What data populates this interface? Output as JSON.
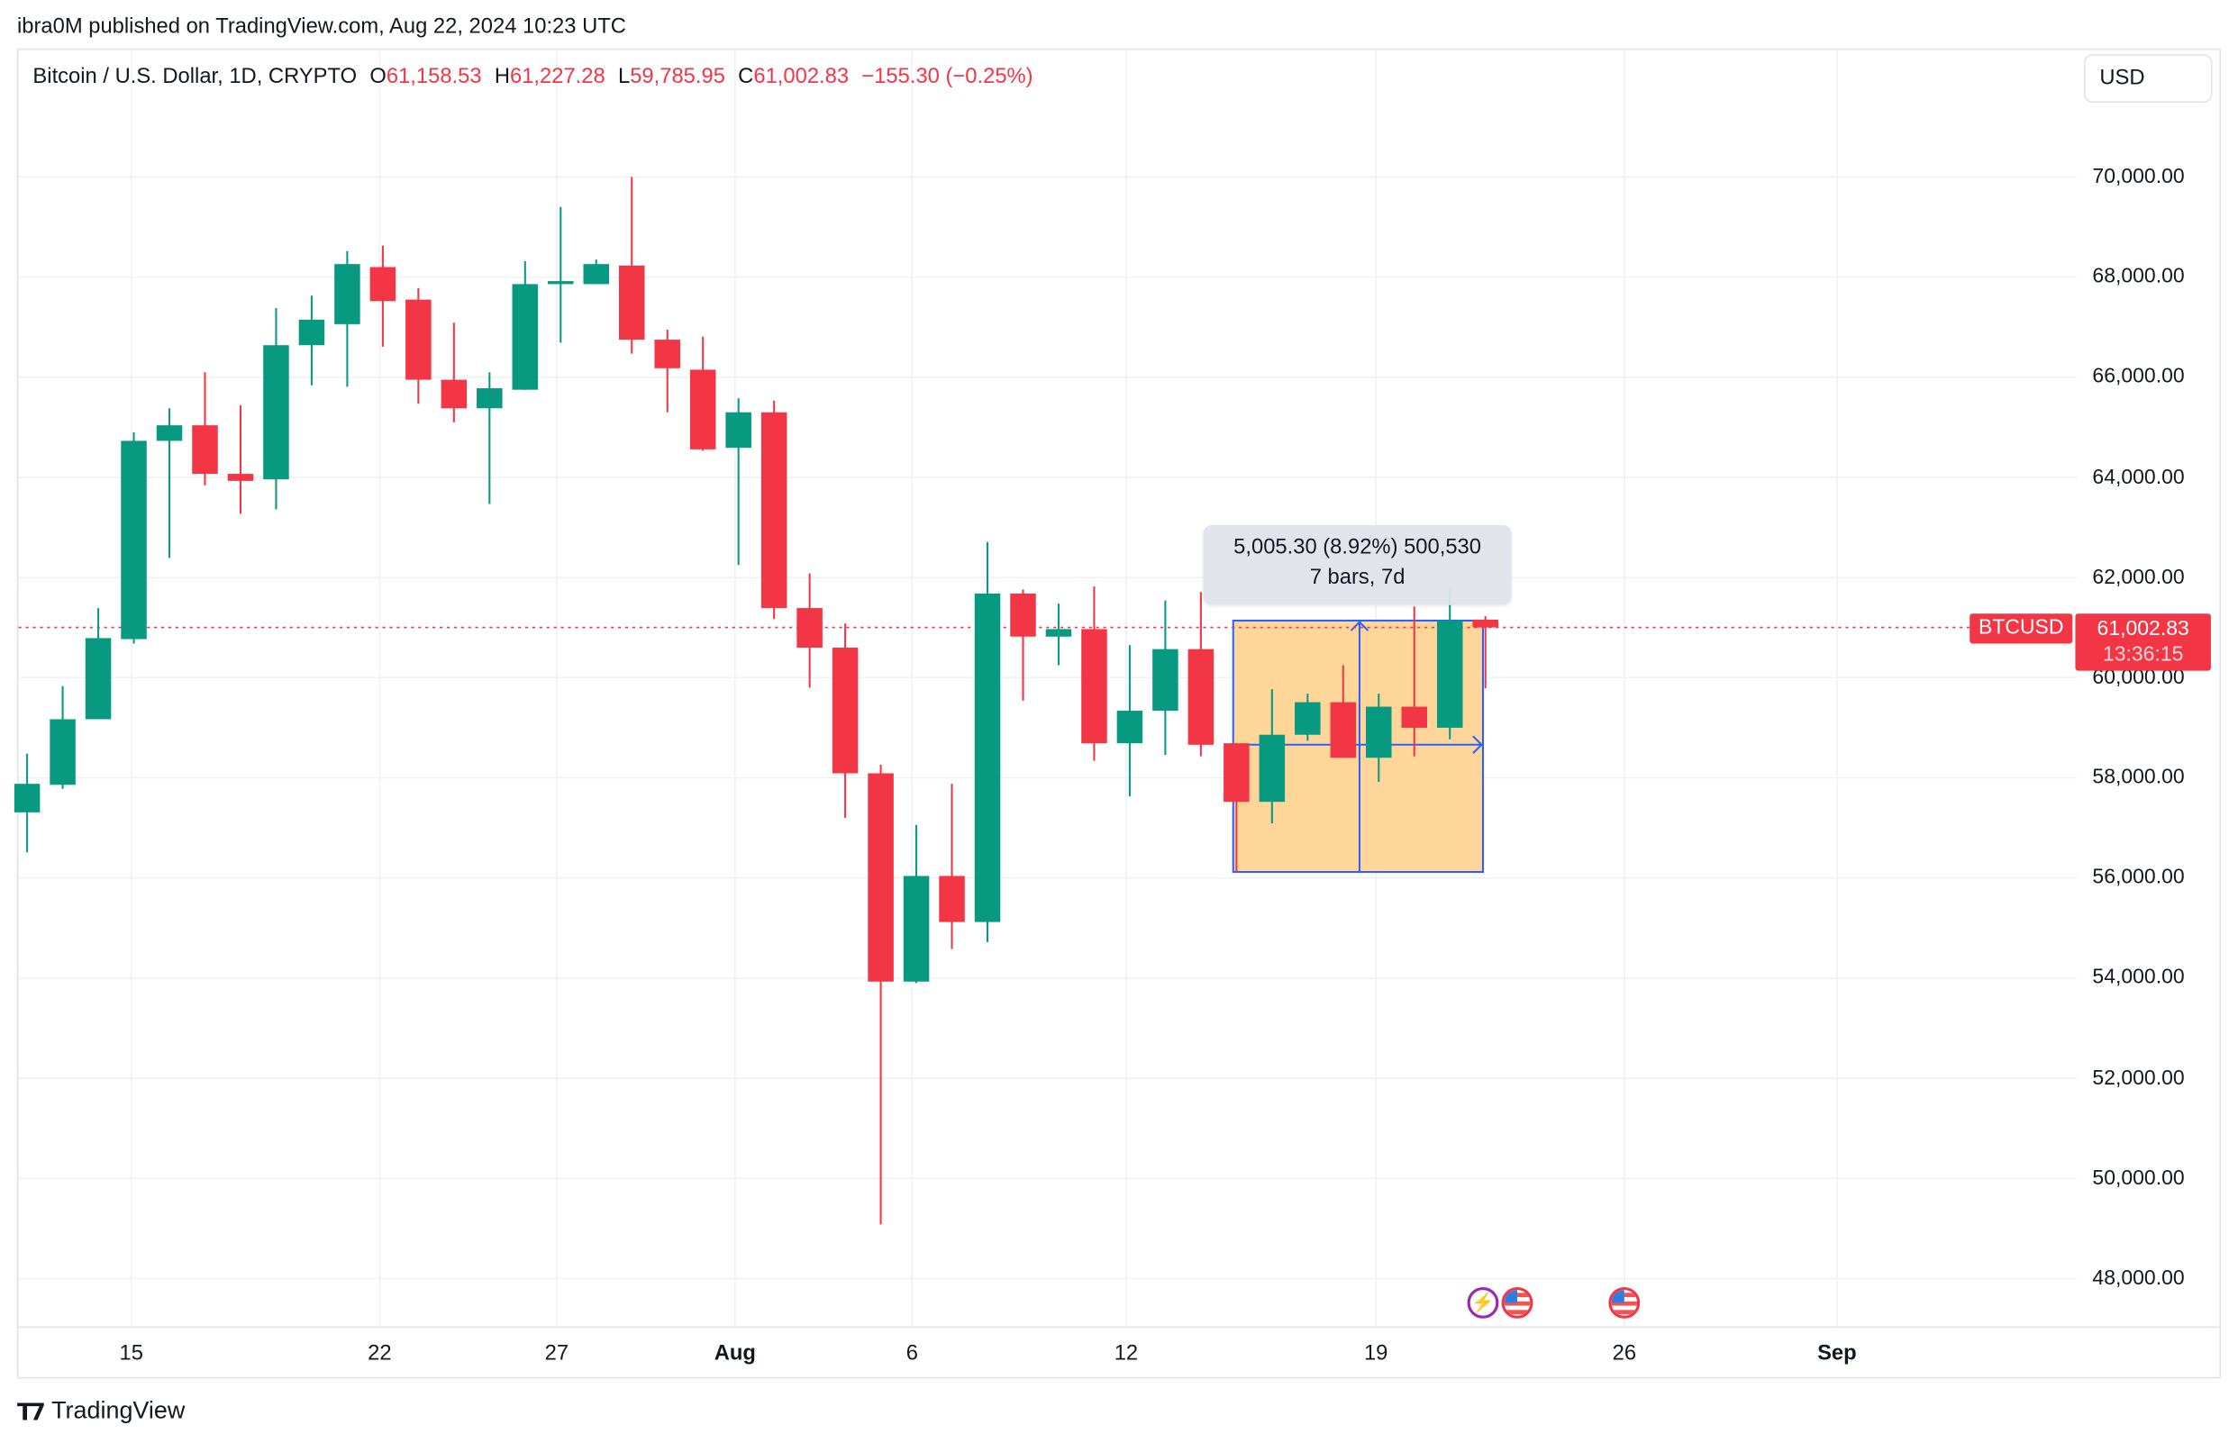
{
  "publisher": "ibra0M published on TradingView.com, Aug 22, 2024 10:23 UTC",
  "legend": {
    "symbol": "Bitcoin / U.S. Dollar, 1D, CRYPTO",
    "o_label": "O",
    "o": "61,158.53",
    "h_label": "H",
    "h": "61,227.28",
    "l_label": "L",
    "l": "59,785.95",
    "c_label": "C",
    "c": "61,002.83",
    "change": "−155.30 (−0.25%)"
  },
  "currency_button": "USD",
  "price_axis": [
    "70,000.00",
    "68,000.00",
    "66,000.00",
    "64,000.00",
    "62,000.00",
    "60,000.00",
    "58,000.00",
    "56,000.00",
    "54,000.00",
    "52,000.00",
    "50,000.00",
    "48,000.00"
  ],
  "time_axis": [
    {
      "label": "15",
      "bold": false
    },
    {
      "label": "22",
      "bold": false
    },
    {
      "label": "27",
      "bold": false
    },
    {
      "label": "Aug",
      "bold": true
    },
    {
      "label": "6",
      "bold": false
    },
    {
      "label": "12",
      "bold": false
    },
    {
      "label": "19",
      "bold": false
    },
    {
      "label": "26",
      "bold": false
    },
    {
      "label": "Sep",
      "bold": true
    }
  ],
  "last_price": {
    "symbol_tag": "BTCUSD",
    "price": "61,002.83",
    "countdown": "13:36:15"
  },
  "measure_tool": {
    "line1": "5,005.30 (8.92%) 500,530",
    "line2": "7 bars, 7d"
  },
  "events": [
    {
      "type": "bolt-icon"
    },
    {
      "type": "us-flag-icon"
    },
    {
      "type": "us-flag-icon"
    }
  ],
  "branding": "TradingView",
  "colors": {
    "up": "#089981",
    "down": "#f23645",
    "grid": "#f0f1f4",
    "measure_fill": "#ffd699",
    "measure_line": "#2962ff",
    "event_bolt": "#9c27b0"
  },
  "chart_data": {
    "type": "candlestick",
    "title": "Bitcoin / U.S. Dollar, 1D, CRYPTO",
    "xlabel": "",
    "ylabel": "USD",
    "ylim": [
      47000,
      71500
    ],
    "grid": true,
    "x": [
      "Jul 12",
      "Jul 13",
      "Jul 14",
      "Jul 15",
      "Jul 16",
      "Jul 17",
      "Jul 18",
      "Jul 19",
      "Jul 20",
      "Jul 21",
      "Jul 22",
      "Jul 23",
      "Jul 24",
      "Jul 25",
      "Jul 26",
      "Jul 27",
      "Jul 28",
      "Jul 29",
      "Jul 30",
      "Jul 31",
      "Aug 1",
      "Aug 2",
      "Aug 3",
      "Aug 4",
      "Aug 5",
      "Aug 6",
      "Aug 7",
      "Aug 8",
      "Aug 9",
      "Aug 10",
      "Aug 11",
      "Aug 12",
      "Aug 13",
      "Aug 14",
      "Aug 15",
      "Aug 16",
      "Aug 17",
      "Aug 18",
      "Aug 19",
      "Aug 20",
      "Aug 21",
      "Aug 22"
    ],
    "open": [
      57310,
      57860,
      59170,
      60770,
      64730,
      65040,
      64070,
      63960,
      66640,
      67060,
      68200,
      67550,
      65950,
      65380,
      65750,
      67860,
      67860,
      68230,
      66750,
      66150,
      64590,
      65300,
      61390,
      60600,
      58090,
      53930,
      56040,
      55120,
      61680,
      60820,
      60970,
      58690,
      59340,
      60570,
      58690,
      57520,
      58860,
      59510,
      58400,
      59420,
      59000,
      61158.53
    ],
    "high": [
      58480,
      59830,
      61390,
      64900,
      65380,
      66100,
      65440,
      67380,
      67630,
      68520,
      68630,
      67780,
      67090,
      66100,
      68320,
      69400,
      68350,
      70000,
      66950,
      66810,
      65580,
      65530,
      62080,
      61080,
      58260,
      57060,
      57880,
      62710,
      61760,
      61480,
      61820,
      60650,
      61540,
      61710,
      58690,
      59770,
      59680,
      60250,
      59680,
      61420,
      61820,
      61227.28
    ],
    "low": [
      56510,
      57780,
      59170,
      60680,
      62390,
      63840,
      63270,
      63360,
      65840,
      65810,
      66610,
      65470,
      65100,
      63470,
      65750,
      66690,
      67860,
      66470,
      65300,
      64530,
      62250,
      61170,
      59800,
      57200,
      49080,
      53900,
      54580,
      54720,
      59540,
      60250,
      58340,
      57630,
      58460,
      58430,
      56120,
      57090,
      58740,
      58400,
      57920,
      58430,
      58770,
      59785.95
    ],
    "close": [
      57880,
      59170,
      60790,
      64730,
      65040,
      64070,
      63930,
      66640,
      67150,
      68260,
      67520,
      65950,
      65380,
      65780,
      67860,
      67920,
      68260,
      66750,
      66180,
      64560,
      65300,
      61390,
      60600,
      58090,
      53930,
      56040,
      55120,
      61680,
      60820,
      60970,
      58690,
      59340,
      60570,
      58660,
      57520,
      58860,
      59510,
      58400,
      59420,
      59000,
      61140,
      61002.83
    ],
    "last_price": 61002.83,
    "annotations": [
      {
        "type": "price_range_measure",
        "from_date": "Aug 15",
        "to_date": "Aug 22",
        "price_low": 56120,
        "price_high": 61140,
        "label": "5,005.30 (8.92%) 500,530",
        "sublabel": "7 bars, 7d"
      }
    ]
  }
}
